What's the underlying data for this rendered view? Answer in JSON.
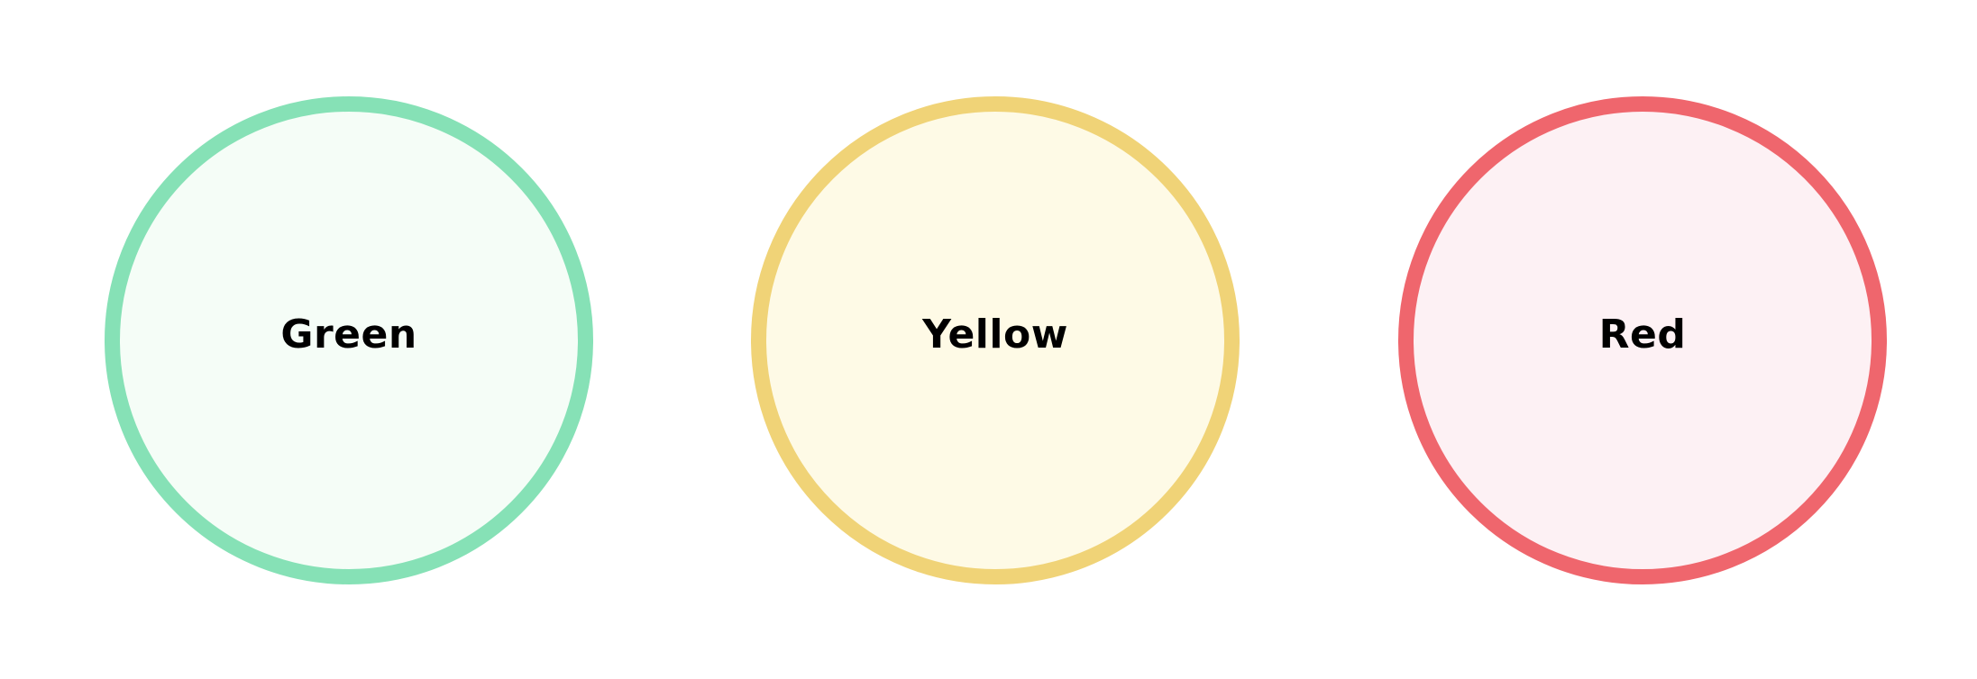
{
  "circles": [
    {
      "label": "Green",
      "border_color": "#86E1B6",
      "fill_color": "#F5FDF7"
    },
    {
      "label": "Yellow",
      "border_color": "#F0D377",
      "fill_color": "#FEFAE6"
    },
    {
      "label": "Red",
      "border_color": "#EF666D",
      "fill_color": "#FDF1F4"
    }
  ]
}
